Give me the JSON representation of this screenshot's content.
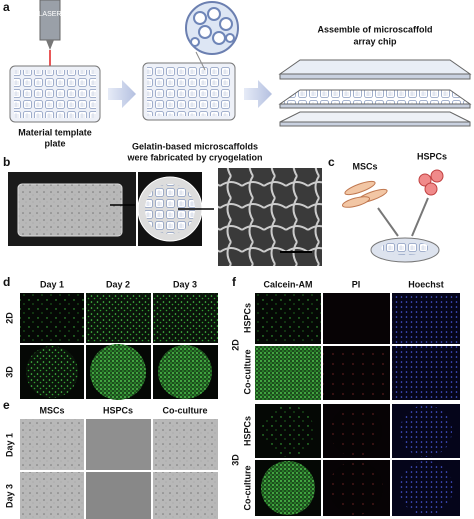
{
  "panel_a": {
    "letter": "a",
    "laser": "LASER",
    "steps": [
      {
        "lines": [
          "Material template",
          "plate"
        ]
      },
      {
        "lines": [
          "Gelatin-based microscaffolds",
          "were fabricated by cryogelation"
        ]
      },
      {
        "lines": [
          "Assemble of microscaffold",
          "array chip"
        ]
      }
    ]
  },
  "panel_b": {
    "letter": "b"
  },
  "panel_c": {
    "letter": "c",
    "labels": [
      "MSCs",
      "HSPCs"
    ]
  },
  "panel_d": {
    "letter": "d",
    "columns": [
      "Day 1",
      "Day 2",
      "Day 3"
    ],
    "rows": [
      "2D",
      "3D"
    ]
  },
  "panel_e": {
    "letter": "e",
    "columns": [
      "MSCs",
      "HSPCs",
      "Co-culture"
    ],
    "rows": [
      "Day 1",
      "Day 3"
    ]
  },
  "panel_f": {
    "letter": "f",
    "columns": [
      "Calcein-AM",
      "PI",
      "Hoechst"
    ],
    "groups": [
      {
        "name": "2D",
        "rows": [
          "HSPCs",
          "Co-culture"
        ]
      },
      {
        "name": "3D",
        "rows": [
          "HSPCs",
          "Co-culture"
        ]
      }
    ]
  }
}
